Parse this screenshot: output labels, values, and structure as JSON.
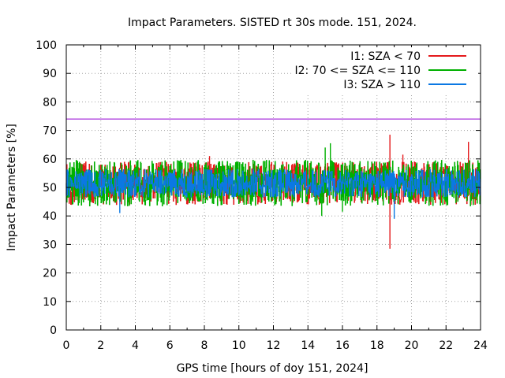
{
  "chart_data": {
    "type": "line",
    "title": "Impact Parameters. SISTED rt 30s mode. 151, 2024.",
    "xlabel": "GPS time [hours of doy 151, 2024]",
    "ylabel": "Impact Parameters [%]",
    "xlim": [
      0,
      24
    ],
    "ylim": [
      0,
      100
    ],
    "xticks": [
      0,
      2,
      4,
      6,
      8,
      10,
      12,
      14,
      16,
      18,
      20,
      22,
      24
    ],
    "yticks": [
      0,
      10,
      20,
      30,
      40,
      50,
      60,
      70,
      80,
      90,
      100
    ],
    "grid": true,
    "legend_position": "top-right",
    "reference_line": {
      "y": 74,
      "color": "#9400d3"
    },
    "series": [
      {
        "name": "I1: SZA < 70",
        "color": "#e41a1c",
        "mean": 51.5,
        "min_typical": 44,
        "max_typical": 59,
        "spikes": [
          {
            "x": 8.3,
            "y": 61
          },
          {
            "x": 18.75,
            "y": 68.5
          },
          {
            "x": 18.75,
            "y": 28.5
          },
          {
            "x": 19.5,
            "y": 61.5
          },
          {
            "x": 23.3,
            "y": 66
          }
        ]
      },
      {
        "name": "I2: 70 <= SZA <= 110",
        "color": "#00b000",
        "mean": 51.5,
        "min_typical": 44,
        "max_typical": 60,
        "spikes": [
          {
            "x": 15.0,
            "y": 64
          },
          {
            "x": 15.3,
            "y": 65.5
          },
          {
            "x": 14.8,
            "y": 40
          },
          {
            "x": 16.0,
            "y": 41.5
          }
        ]
      },
      {
        "name": "I3: SZA > 110",
        "color": "#0b78e3",
        "mean": 51.5,
        "min_typical": 45,
        "max_typical": 57,
        "spikes": [
          {
            "x": 3.1,
            "y": 41
          },
          {
            "x": 19.0,
            "y": 39
          }
        ]
      }
    ]
  }
}
